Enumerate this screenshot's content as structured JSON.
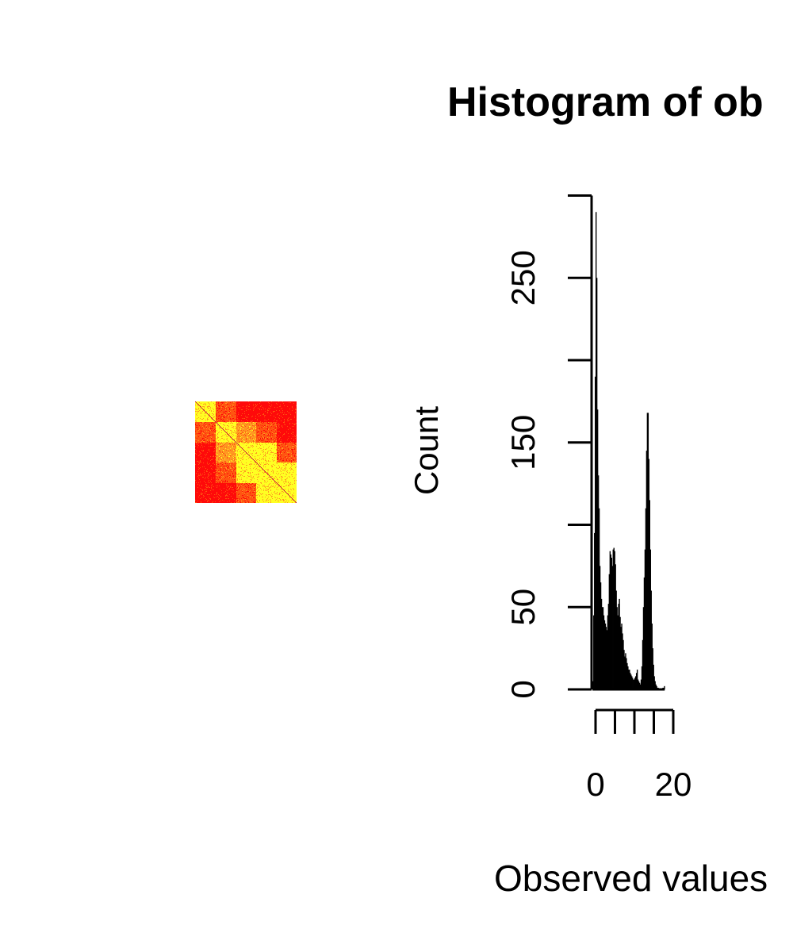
{
  "chart_data": [
    {
      "type": "heatmap",
      "title": "",
      "blocks": 5,
      "colors": [
        "#ffff22",
        "#ff9922",
        "#ff5511",
        "#ff0a0a"
      ],
      "diagonal_color": "#bb0044",
      "block_levels": [
        [
          0,
          2,
          3,
          3,
          3
        ],
        [
          2,
          0,
          1,
          2,
          3
        ],
        [
          3,
          1,
          0,
          0,
          2
        ],
        [
          3,
          2,
          0,
          0,
          0
        ],
        [
          3,
          3,
          2,
          0,
          0
        ]
      ]
    },
    {
      "type": "histogram",
      "title": "Histogram of ob",
      "xlabel": "Observed values",
      "ylabel": "Count",
      "xlim": [
        0,
        24
      ],
      "ylim": [
        0,
        300
      ],
      "xticks": [
        0,
        5,
        10,
        15,
        20
      ],
      "xtick_labels": [
        "0",
        "20"
      ],
      "yticks": [
        0,
        50,
        100,
        150,
        200,
        250,
        300
      ],
      "ytick_labels": [
        "0",
        "50",
        "150",
        "250"
      ],
      "bin_width": 0.2,
      "bin_start": -0.8,
      "counts": [
        5,
        45,
        95,
        190,
        290,
        250,
        170,
        130,
        110,
        75,
        65,
        55,
        50,
        50,
        45,
        42,
        40,
        38,
        36,
        45,
        52,
        70,
        84,
        82,
        80,
        75,
        85,
        86,
        84,
        76,
        60,
        50,
        45,
        52,
        55,
        44,
        38,
        40,
        34,
        30,
        24,
        20,
        22,
        19,
        16,
        14,
        12,
        12,
        10,
        9,
        8,
        7,
        6,
        6,
        7,
        8,
        10,
        12,
        6,
        5,
        4,
        3,
        6,
        14,
        30,
        50,
        68,
        85,
        110,
        145,
        168,
        168,
        140,
        115,
        85,
        60,
        40,
        25,
        15,
        8,
        5,
        3,
        2,
        1,
        1,
        0,
        0,
        0,
        0,
        0,
        1,
        1,
        2
      ]
    }
  ]
}
